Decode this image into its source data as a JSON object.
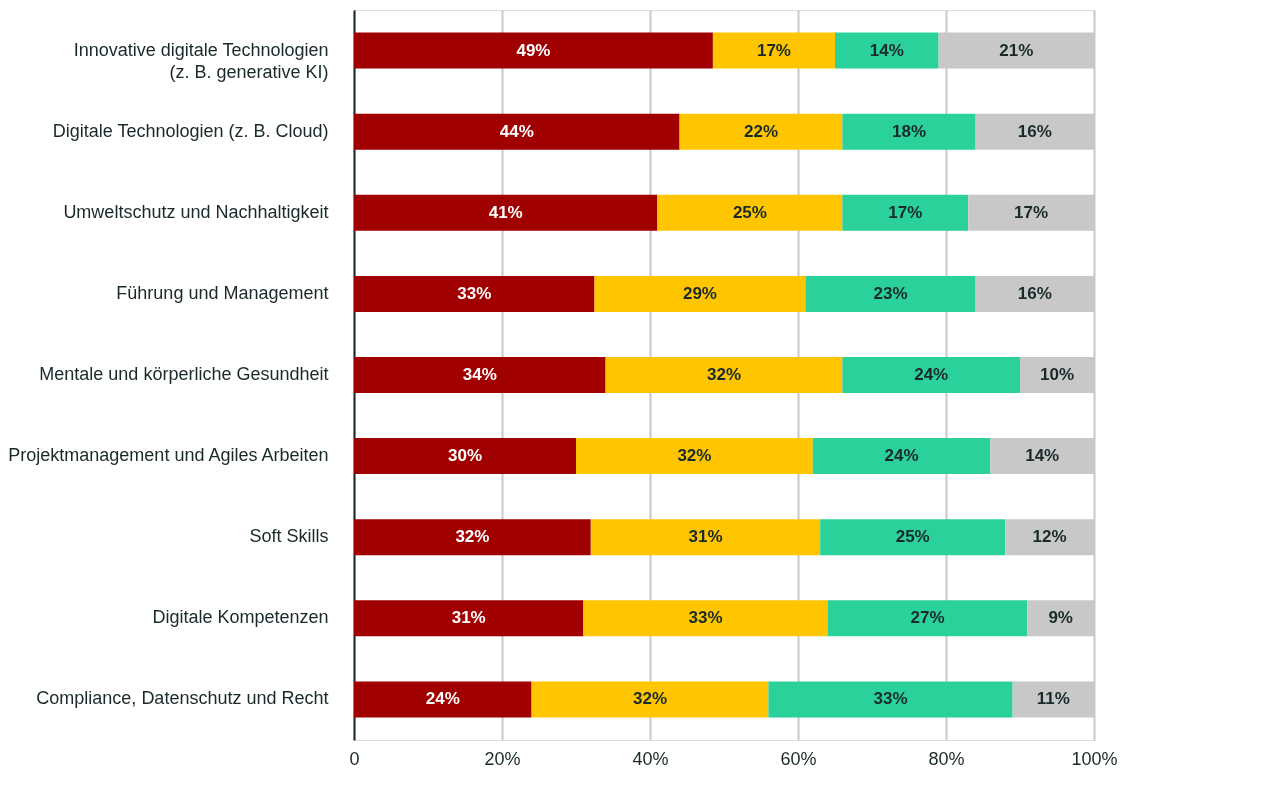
{
  "chart_data": {
    "type": "bar",
    "orientation": "horizontal",
    "stacked": true,
    "categories": [
      "Innovative digitale Technologien\n(z. B. generative KI)",
      "Digitale Technologien (z. B. Cloud)",
      "Umweltschutz und Nachhaltigkeit",
      "Führung und Management",
      "Mentale und körperliche Gesundheit",
      "Projektmanagement und Agiles Arbeiten",
      "Soft Skills",
      "Digitale Kompetenzen",
      "Compliance, Datenschutz und Recht"
    ],
    "series": [
      {
        "color": "#a00000",
        "values": [
          48.5,
          44,
          41,
          32.5,
          34,
          30,
          32,
          31,
          24
        ],
        "value_labels": [
          "49%",
          "44%",
          "41%",
          "33%",
          "34%",
          "30%",
          "32%",
          "31%",
          "24%"
        ]
      },
      {
        "color": "#ffc600",
        "values": [
          16.5,
          22,
          25,
          28.5,
          32,
          32,
          31,
          33,
          32
        ],
        "value_labels": [
          "17%",
          "22%",
          "25%",
          "29%",
          "32%",
          "32%",
          "31%",
          "33%",
          "32%"
        ]
      },
      {
        "color": "#2ad19a",
        "values": [
          14,
          18,
          17,
          23,
          24,
          24,
          25,
          27,
          33
        ],
        "value_labels": [
          "14%",
          "18%",
          "17%",
          "23%",
          "24%",
          "24%",
          "25%",
          "27%",
          "33%"
        ]
      },
      {
        "color": "#c8c8c8",
        "values": [
          21,
          16,
          17,
          16,
          10,
          14,
          12,
          9,
          11
        ],
        "value_labels": [
          "21%",
          "16%",
          "17%",
          "16%",
          "10%",
          "14%",
          "12%",
          "9%",
          "11%"
        ]
      }
    ],
    "xlim": [
      0,
      100
    ],
    "xticks": [
      0,
      {
        "value": 20,
        "label": "20%"
      },
      {
        "value": 40,
        "label": "40%"
      },
      {
        "value": 60,
        "label": "60%"
      },
      {
        "value": 80,
        "label": "80%"
      },
      {
        "value": 100,
        "label": "100%"
      }
    ],
    "grid": "x"
  }
}
